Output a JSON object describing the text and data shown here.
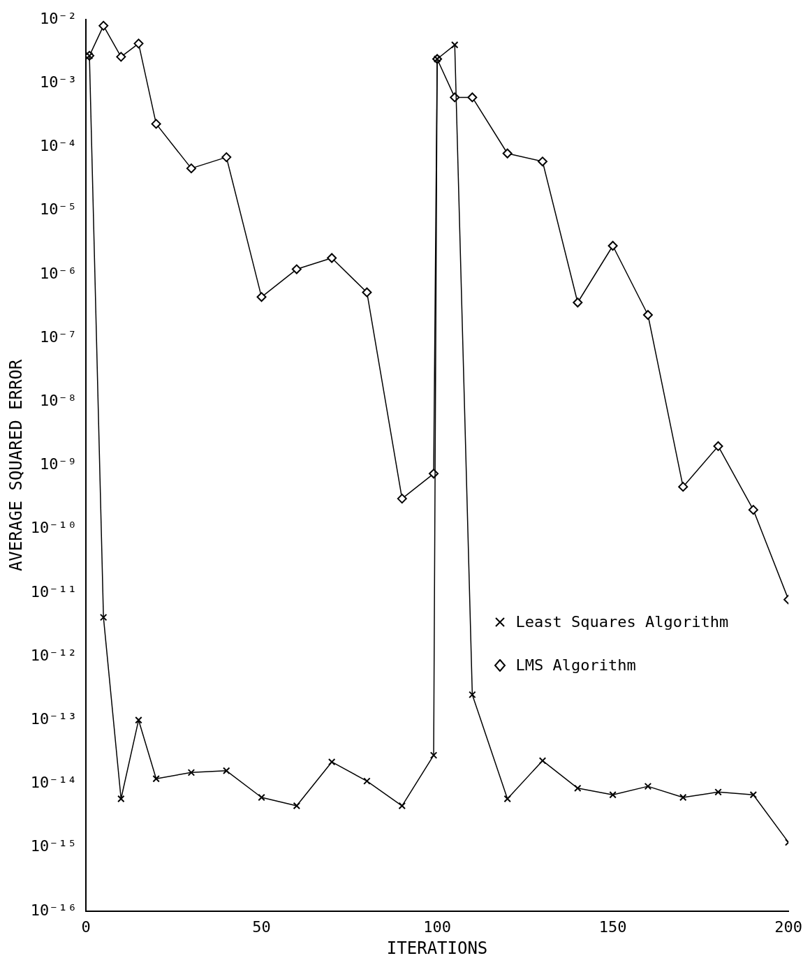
{
  "chart_data": {
    "type": "line",
    "xlabel": "ITERATIONS",
    "ylabel": "AVERAGE SQUARED ERROR",
    "log": "y",
    "grid": false,
    "legend": "right",
    "xlim": [
      0,
      200
    ],
    "xticks": [
      0,
      50,
      100,
      150,
      200
    ],
    "ylim": [
      1e-16,
      0.01
    ],
    "yticks": [
      {
        "value": 1e-16,
        "label": "10⁻¹⁶"
      },
      {
        "value": 1e-15,
        "label": "10⁻¹⁵"
      },
      {
        "value": 1e-14,
        "label": "10⁻¹⁴"
      },
      {
        "value": 1e-13,
        "label": "10⁻¹³"
      },
      {
        "value": 1e-12,
        "label": "10⁻¹²"
      },
      {
        "value": 1e-11,
        "label": "10⁻¹¹"
      },
      {
        "value": 1e-10,
        "label": "10⁻¹⁰"
      },
      {
        "value": 1e-09,
        "label": "10⁻⁹"
      },
      {
        "value": 1e-08,
        "label": "10⁻⁸"
      },
      {
        "value": 1e-07,
        "label": "10⁻⁷"
      },
      {
        "value": 1e-06,
        "label": "10⁻⁶"
      },
      {
        "value": 1e-05,
        "label": "10⁻⁵"
      },
      {
        "value": 0.0001,
        "label": "10⁻⁴"
      },
      {
        "value": 0.001,
        "label": "10⁻³"
      },
      {
        "value": 0.01,
        "label": "10⁻²"
      }
    ],
    "x": [
      1,
      5,
      10,
      15,
      20,
      30,
      40,
      50,
      60,
      70,
      80,
      90,
      99,
      100,
      105,
      110,
      120,
      130,
      140,
      150,
      160,
      170,
      180,
      190,
      200
    ],
    "series": [
      {
        "name": "Least Squares Algorithm",
        "color": "#000000",
        "marker": "cross",
        "values": [
          0.0027,
          4.1e-12,
          5.8e-15,
          1e-13,
          1.2e-14,
          1.5e-14,
          1.6e-14,
          6.1e-15,
          4.5e-15,
          2.2e-14,
          1.1e-14,
          4.5e-15,
          2.8e-14,
          0.0024,
          0.004,
          2.5e-13,
          5.8e-15,
          2.3e-14,
          8.5e-15,
          6.7e-15,
          9.1e-15,
          6.1e-15,
          7.4e-15,
          6.7e-15,
          1.2e-15
        ]
      },
      {
        "name": "LMS Algorithm",
        "color": "#000000",
        "marker": "diamond",
        "values": [
          0.0027,
          0.008,
          0.0026,
          0.0042,
          0.00023,
          4.6e-05,
          6.9e-05,
          4.4e-07,
          1.2e-06,
          1.8e-06,
          5.2e-07,
          3e-10,
          7.4e-10,
          0.0024,
          0.0006,
          0.0006,
          7.9e-05,
          5.9e-05,
          3.6e-07,
          2.8e-06,
          2.3e-07,
          4.6e-10,
          2e-09,
          2e-10,
          7.8e-12
        ]
      }
    ]
  }
}
